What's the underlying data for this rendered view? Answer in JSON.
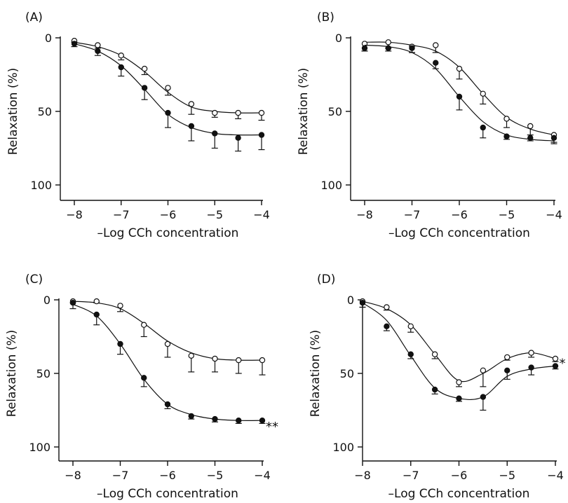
{
  "chart_data": [
    {
      "type": "line",
      "panel_label": "(A)",
      "xlabel": "–Log CCh concentration",
      "ylabel": "Relaxation (%)",
      "xlim": [
        -8,
        -4
      ],
      "ylim": [
        0,
        100
      ],
      "y_inverted": true,
      "xticks": [
        "-8",
        "-7",
        "-6",
        "-5",
        "-4"
      ],
      "yticks": [
        "0",
        "50",
        "100"
      ],
      "x": [
        -8,
        -7.5,
        -7,
        -6.5,
        -6,
        -5.5,
        -5,
        -4.5,
        -4
      ],
      "annotation": "",
      "series": [
        {
          "marker": "open-circle",
          "values": [
            2,
            5,
            12,
            21,
            34,
            45,
            51,
            51,
            51
          ],
          "errors": [
            1,
            2,
            3,
            4,
            5,
            7,
            3,
            4,
            5
          ],
          "curve": [
            3,
            6,
            12,
            23,
            37,
            47,
            50,
            51,
            51
          ]
        },
        {
          "marker": "filled-circle",
          "values": [
            4,
            9,
            20,
            34,
            51,
            60,
            65,
            68,
            66
          ],
          "errors": [
            2,
            3,
            6,
            8,
            10,
            10,
            10,
            9,
            10
          ],
          "curve": [
            4,
            9,
            19,
            35,
            52,
            61,
            65,
            66,
            66
          ]
        }
      ]
    },
    {
      "type": "line",
      "panel_label": "(B)",
      "xlabel": "–Log CCh concentration",
      "ylabel": "Relaxation (%)",
      "xlim": [
        -8,
        -4
      ],
      "ylim": [
        0,
        100
      ],
      "y_inverted": true,
      "xticks": [
        "-8",
        "-7",
        "-6",
        "-5",
        "-4"
      ],
      "yticks": [
        "0",
        "50",
        "100"
      ],
      "x": [
        -8,
        -7.5,
        -7,
        -6.5,
        -6,
        -5.5,
        -5,
        -4.5,
        -4
      ],
      "annotation": "",
      "series": [
        {
          "marker": "open-circle",
          "values": [
            4,
            3,
            6,
            5,
            21,
            38,
            55,
            60,
            66
          ],
          "errors": [
            5,
            4,
            4,
            5,
            7,
            7,
            6,
            6,
            6
          ],
          "curve": [
            3,
            3,
            5,
            9,
            20,
            38,
            54,
            62,
            66
          ]
        },
        {
          "marker": "filled-circle",
          "values": [
            7,
            7,
            7,
            17,
            40,
            61,
            67,
            68,
            68
          ],
          "errors": [
            2,
            2,
            3,
            4,
            9,
            7,
            2,
            2,
            3
          ],
          "curve": [
            5,
            6,
            10,
            21,
            40,
            57,
            66,
            69,
            70
          ]
        }
      ]
    },
    {
      "type": "line",
      "panel_label": "(C)",
      "xlabel": "–Log CCh concentration",
      "ylabel": "Relaxation (%)",
      "xlim": [
        -8,
        -4
      ],
      "ylim": [
        0,
        100
      ],
      "y_inverted": true,
      "xticks": [
        "-8",
        "-7",
        "-6",
        "-5",
        "-4"
      ],
      "yticks": [
        "0",
        "50",
        "100"
      ],
      "x": [
        -8,
        -7.5,
        -7,
        -6.5,
        -6,
        -5.5,
        -5,
        -4.5,
        -4
      ],
      "annotation": "**",
      "series": [
        {
          "marker": "open-circle",
          "values": [
            1,
            1,
            4,
            17,
            30,
            38,
            40,
            41,
            41
          ],
          "errors": [
            1,
            1,
            4,
            8,
            9,
            11,
            9,
            9,
            10
          ],
          "curve": [
            1,
            2,
            6,
            16,
            28,
            36,
            40,
            41,
            41
          ]
        },
        {
          "marker": "filled-circle",
          "values": [
            2,
            10,
            30,
            53,
            71,
            79,
            81,
            82,
            82
          ],
          "errors": [
            4,
            7,
            7,
            6,
            3,
            2,
            2,
            2,
            2
          ],
          "curve": [
            3,
            11,
            30,
            54,
            71,
            78,
            81,
            82,
            82
          ]
        }
      ]
    },
    {
      "type": "line",
      "panel_label": "(D)",
      "xlabel": "–Log CCh concentration",
      "ylabel": "Relaxation (%)",
      "xlim": [
        -8,
        -4
      ],
      "ylim": [
        0,
        100
      ],
      "y_inverted": true,
      "xticks": [
        "-8",
        "-7",
        "-6",
        "-5",
        "-4"
      ],
      "yticks": [
        "0",
        "50",
        "100"
      ],
      "x": [
        -8,
        -7.5,
        -7,
        -6.5,
        -6,
        -5.5,
        -5,
        -4.5,
        -4
      ],
      "annotation": "*",
      "series": [
        {
          "marker": "open-circle",
          "values": [
            1,
            5,
            18,
            37,
            56,
            48,
            39,
            36,
            40
          ],
          "errors": [
            4,
            2,
            4,
            3,
            3,
            11,
            2,
            3,
            2
          ],
          "curve": [
            1,
            6,
            17,
            37,
            55,
            50,
            40,
            36,
            40
          ]
        },
        {
          "marker": "filled-circle",
          "values": [
            2,
            18,
            37,
            61,
            67,
            66,
            48,
            46,
            45
          ],
          "errors": [
            3,
            3,
            3,
            3,
            2,
            9,
            6,
            5,
            2
          ],
          "curve": [
            2,
            14,
            38,
            60,
            67,
            66,
            52,
            47,
            45
          ]
        }
      ]
    }
  ]
}
